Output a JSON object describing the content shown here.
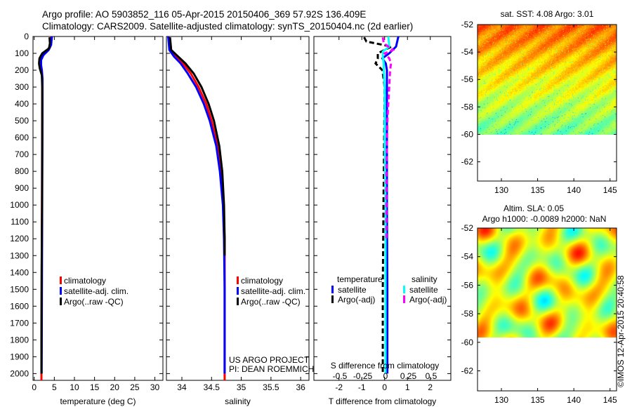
{
  "title": {
    "line1": "Argo profile: AO 5903852_116 05-Apr-2015 20150406_369 57.92S 136.409E",
    "line2": "Climatology: CARS2009. Satellite-adjusted climatology: synTS_20150404.nc (2d earlier)"
  },
  "watermark": "©IMOS 12-Apr-2015 20:40:58",
  "project_text": [
    "US ARGO PROJECT",
    "PI: DEAN ROEMMICH"
  ],
  "colors": {
    "climatology": "#ff0000",
    "satellite": "#0000ff",
    "argo": "#000000",
    "sal_satellite": "#00ffff",
    "sal_argo": "#ff00ff"
  },
  "chart_data": [
    {
      "type": "line",
      "name": "temperature",
      "xlabel": "temperature (deg C)",
      "ylabel": "",
      "xlim": [
        -0.3,
        32
      ],
      "ylim": [
        2040,
        0
      ],
      "xticks": [
        0,
        5,
        10,
        15,
        20,
        25,
        30
      ],
      "yticks": [
        0,
        100,
        200,
        300,
        400,
        500,
        600,
        700,
        800,
        900,
        1000,
        1100,
        1200,
        1300,
        1400,
        1500,
        1600,
        1700,
        1800,
        1900,
        2000
      ],
      "legend": [
        "climatology",
        "satellite-adj. clim.",
        "Argo(..raw -QC)"
      ],
      "legend_placement": "lower-center",
      "series": [
        {
          "name": "climatology",
          "color": "#ff0000",
          "depth": [
            0,
            50,
            80,
            110,
            140,
            170,
            200,
            250,
            400,
            800,
            1200,
            1600,
            2000,
            2040
          ],
          "values": [
            4.2,
            4.0,
            3.4,
            2.2,
            1.6,
            1.6,
            1.8,
            2.0,
            2.0,
            1.95,
            1.9,
            1.85,
            1.8,
            1.8
          ]
        },
        {
          "name": "satellite-adj. clim.",
          "color": "#0000ff",
          "depth": [
            0,
            50,
            80,
            110,
            140,
            170,
            200,
            250,
            400,
            800,
            1200,
            1600,
            2000
          ],
          "values": [
            4.4,
            4.2,
            3.6,
            2.3,
            1.7,
            1.7,
            1.9,
            2.05,
            2.05,
            2.0,
            1.95,
            1.9,
            1.85
          ]
        },
        {
          "name": "Argo(..raw -QC)",
          "color": "#000000",
          "depth": [
            5,
            40,
            70,
            100,
            130,
            160,
            190,
            230,
            300,
            600,
            1000,
            1400,
            1800,
            2000
          ],
          "values": [
            3.8,
            3.9,
            3.7,
            2.0,
            1.3,
            1.2,
            1.4,
            1.9,
            2.0,
            2.0,
            1.95,
            1.85,
            1.8,
            1.8
          ]
        }
      ]
    },
    {
      "type": "line",
      "name": "salinity",
      "xlabel": "salinity",
      "xlim": [
        33.74,
        36.14
      ],
      "ylim": [
        2040,
        0
      ],
      "xticks": [
        34,
        34.5,
        35,
        35.5,
        36
      ],
      "legend": [
        "climatology",
        "satellite-adj. clim.",
        "Argo(..raw -QC)"
      ],
      "legend_placement": "lower-center",
      "series": [
        {
          "name": "climatology",
          "color": "#ff0000",
          "depth": [
            0,
            80,
            120,
            160,
            220,
            300,
            400,
            500,
            650,
            800,
            1000,
            1200,
            1500,
            2040
          ],
          "values": [
            33.78,
            33.8,
            33.9,
            34.02,
            34.15,
            34.28,
            34.41,
            34.5,
            34.6,
            34.66,
            34.7,
            34.72,
            34.72,
            34.72
          ]
        },
        {
          "name": "satellite-adj. clim.",
          "color": "#0000ff",
          "depth": [
            0,
            80,
            120,
            160,
            220,
            300,
            400,
            500,
            650,
            800,
            1000,
            1200,
            1500,
            2000
          ],
          "values": [
            33.77,
            33.79,
            33.87,
            33.98,
            34.1,
            34.24,
            34.37,
            34.47,
            34.58,
            34.64,
            34.69,
            34.71,
            34.72,
            34.72
          ]
        },
        {
          "name": "Argo(..raw -QC)",
          "color": "#000000",
          "depth": [
            5,
            80,
            120,
            160,
            220,
            300,
            400,
            500,
            650,
            800,
            1000,
            1200,
            1300
          ],
          "values": [
            33.8,
            33.82,
            33.94,
            34.06,
            34.2,
            34.33,
            34.45,
            34.54,
            34.63,
            34.68,
            34.71,
            34.72,
            34.72
          ]
        }
      ]
    },
    {
      "type": "line",
      "name": "difference",
      "xlabel": "T difference from climatology",
      "top_xlabel": "S difference from climatology",
      "xlim": [
        -3.1,
        2.9
      ],
      "ylim": [
        2040,
        0
      ],
      "xticks": [
        -2,
        -1,
        0,
        1,
        2
      ],
      "top_xticks": [
        -0.5,
        -0.25,
        0,
        0.25,
        0.5
      ],
      "top_xtick_labels": [
        "-0.5",
        "-0.25",
        "0",
        "0.25",
        "0.5"
      ],
      "legend_headers": [
        "temperature",
        "salinity"
      ],
      "legend": [
        "satellite",
        "Argo(-adj)",
        "satellite",
        "Argo(-adj)"
      ],
      "series": [
        {
          "name": "T satellite",
          "color": "#0000ff",
          "depth": [
            0,
            60,
            100,
            130,
            160,
            200,
            300,
            600,
            1000,
            1500,
            2000
          ],
          "values": [
            0.6,
            0.5,
            0.2,
            -0.1,
            0.05,
            0.1,
            0.1,
            0.1,
            0.1,
            0.12,
            0.12
          ]
        },
        {
          "name": "T Argo(-adj)",
          "color": "#000000",
          "dashed": true,
          "depth": [
            5,
            30,
            60,
            100,
            130,
            160,
            200,
            300,
            600,
            1000,
            1500,
            2000
          ],
          "values": [
            -0.9,
            -0.8,
            0.3,
            -0.3,
            -0.3,
            -0.4,
            -0.1,
            0,
            -0.02,
            -0.05,
            -0.08,
            -0.08
          ]
        },
        {
          "name": "S satellite",
          "color": "#00ffff",
          "depth": [
            0,
            60,
            90,
            120,
            160,
            200,
            300,
            600,
            1000,
            1500,
            2000
          ],
          "values": [
            0.04,
            0.05,
            -0.02,
            -0.02,
            -0.01,
            -0.01,
            0,
            0,
            0.01,
            0.01,
            0.01
          ]
        },
        {
          "name": "S Argo(-adj)",
          "color": "#ff00ff",
          "dashed": true,
          "depth": [
            5,
            40,
            80,
            100,
            130,
            160,
            200,
            300,
            500,
            800,
            1200
          ],
          "values": [
            -0.02,
            -0.01,
            0.09,
            0,
            0.05,
            0.07,
            0.06,
            0.05,
            0.03,
            0.02,
            0.02
          ]
        }
      ]
    },
    {
      "type": "heatmap",
      "name": "sst-map",
      "title": "sat. SST: 4.08  Argo: 3.01",
      "xlim": [
        126.7,
        145.9
      ],
      "ylim": [
        -63.4,
        -52
      ],
      "data_lat_min": -60,
      "xticks": [
        130,
        135,
        140,
        145
      ],
      "yticks": [
        -52,
        -54,
        -56,
        -58,
        -60,
        -62
      ]
    },
    {
      "type": "heatmap",
      "name": "sla-map",
      "title": [
        "Altim. SLA: 0.05",
        "Argo h1000: -0.0089 h2000: NaN"
      ],
      "xlim": [
        126.7,
        145.9
      ],
      "ylim": [
        -63.4,
        -52
      ],
      "data_lat_min": -60,
      "xticks": [
        130,
        135,
        140,
        145
      ],
      "yticks": [
        -52,
        -54,
        -56,
        -58,
        -60,
        -62
      ]
    }
  ]
}
